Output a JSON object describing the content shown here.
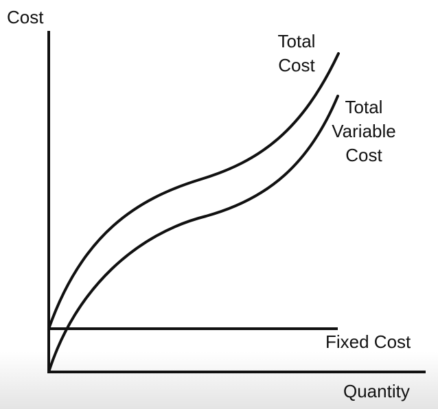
{
  "axes": {
    "y_label": "Cost",
    "x_label": "Quantity"
  },
  "curves": [
    {
      "label_lines": [
        "Total",
        "Cost"
      ]
    },
    {
      "label_lines": [
        "Total",
        "Variable",
        "Cost"
      ]
    },
    {
      "label_lines": [
        "Fixed Cost"
      ]
    }
  ]
}
